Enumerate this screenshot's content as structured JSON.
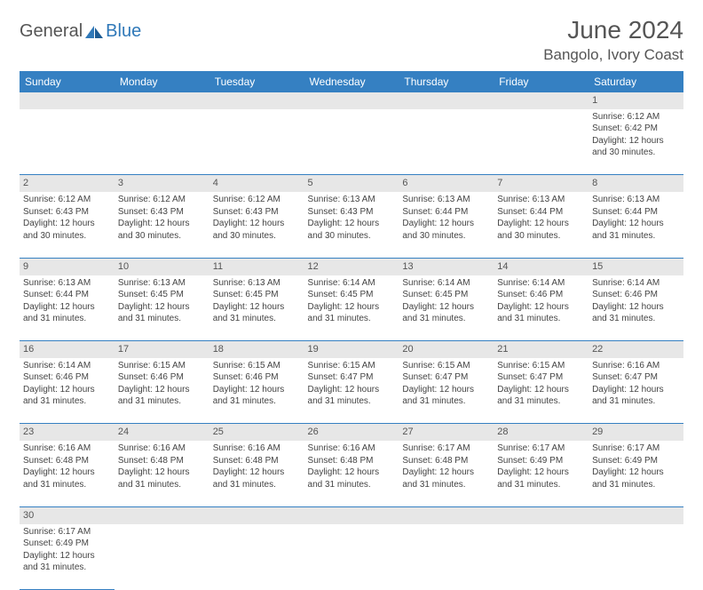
{
  "logo": {
    "part1": "General",
    "part2": "Blue"
  },
  "title": "June 2024",
  "location": "Bangolo, Ivory Coast",
  "colors": {
    "header_bg": "#3580c2",
    "header_text": "#ffffff",
    "daynum_bg": "#e7e7e7",
    "border": "#3580c2",
    "logo_accent": "#2f78b8",
    "text": "#444444"
  },
  "weekdays": [
    "Sunday",
    "Monday",
    "Tuesday",
    "Wednesday",
    "Thursday",
    "Friday",
    "Saturday"
  ],
  "weeks": [
    [
      null,
      null,
      null,
      null,
      null,
      null,
      {
        "n": "1",
        "sr": "6:12 AM",
        "ss": "6:42 PM",
        "dl": "12 hours and 30 minutes."
      }
    ],
    [
      {
        "n": "2",
        "sr": "6:12 AM",
        "ss": "6:43 PM",
        "dl": "12 hours and 30 minutes."
      },
      {
        "n": "3",
        "sr": "6:12 AM",
        "ss": "6:43 PM",
        "dl": "12 hours and 30 minutes."
      },
      {
        "n": "4",
        "sr": "6:12 AM",
        "ss": "6:43 PM",
        "dl": "12 hours and 30 minutes."
      },
      {
        "n": "5",
        "sr": "6:13 AM",
        "ss": "6:43 PM",
        "dl": "12 hours and 30 minutes."
      },
      {
        "n": "6",
        "sr": "6:13 AM",
        "ss": "6:44 PM",
        "dl": "12 hours and 30 minutes."
      },
      {
        "n": "7",
        "sr": "6:13 AM",
        "ss": "6:44 PM",
        "dl": "12 hours and 30 minutes."
      },
      {
        "n": "8",
        "sr": "6:13 AM",
        "ss": "6:44 PM",
        "dl": "12 hours and 31 minutes."
      }
    ],
    [
      {
        "n": "9",
        "sr": "6:13 AM",
        "ss": "6:44 PM",
        "dl": "12 hours and 31 minutes."
      },
      {
        "n": "10",
        "sr": "6:13 AM",
        "ss": "6:45 PM",
        "dl": "12 hours and 31 minutes."
      },
      {
        "n": "11",
        "sr": "6:13 AM",
        "ss": "6:45 PM",
        "dl": "12 hours and 31 minutes."
      },
      {
        "n": "12",
        "sr": "6:14 AM",
        "ss": "6:45 PM",
        "dl": "12 hours and 31 minutes."
      },
      {
        "n": "13",
        "sr": "6:14 AM",
        "ss": "6:45 PM",
        "dl": "12 hours and 31 minutes."
      },
      {
        "n": "14",
        "sr": "6:14 AM",
        "ss": "6:46 PM",
        "dl": "12 hours and 31 minutes."
      },
      {
        "n": "15",
        "sr": "6:14 AM",
        "ss": "6:46 PM",
        "dl": "12 hours and 31 minutes."
      }
    ],
    [
      {
        "n": "16",
        "sr": "6:14 AM",
        "ss": "6:46 PM",
        "dl": "12 hours and 31 minutes."
      },
      {
        "n": "17",
        "sr": "6:15 AM",
        "ss": "6:46 PM",
        "dl": "12 hours and 31 minutes."
      },
      {
        "n": "18",
        "sr": "6:15 AM",
        "ss": "6:46 PM",
        "dl": "12 hours and 31 minutes."
      },
      {
        "n": "19",
        "sr": "6:15 AM",
        "ss": "6:47 PM",
        "dl": "12 hours and 31 minutes."
      },
      {
        "n": "20",
        "sr": "6:15 AM",
        "ss": "6:47 PM",
        "dl": "12 hours and 31 minutes."
      },
      {
        "n": "21",
        "sr": "6:15 AM",
        "ss": "6:47 PM",
        "dl": "12 hours and 31 minutes."
      },
      {
        "n": "22",
        "sr": "6:16 AM",
        "ss": "6:47 PM",
        "dl": "12 hours and 31 minutes."
      }
    ],
    [
      {
        "n": "23",
        "sr": "6:16 AM",
        "ss": "6:48 PM",
        "dl": "12 hours and 31 minutes."
      },
      {
        "n": "24",
        "sr": "6:16 AM",
        "ss": "6:48 PM",
        "dl": "12 hours and 31 minutes."
      },
      {
        "n": "25",
        "sr": "6:16 AM",
        "ss": "6:48 PM",
        "dl": "12 hours and 31 minutes."
      },
      {
        "n": "26",
        "sr": "6:16 AM",
        "ss": "6:48 PM",
        "dl": "12 hours and 31 minutes."
      },
      {
        "n": "27",
        "sr": "6:17 AM",
        "ss": "6:48 PM",
        "dl": "12 hours and 31 minutes."
      },
      {
        "n": "28",
        "sr": "6:17 AM",
        "ss": "6:49 PM",
        "dl": "12 hours and 31 minutes."
      },
      {
        "n": "29",
        "sr": "6:17 AM",
        "ss": "6:49 PM",
        "dl": "12 hours and 31 minutes."
      }
    ],
    [
      {
        "n": "30",
        "sr": "6:17 AM",
        "ss": "6:49 PM",
        "dl": "12 hours and 31 minutes."
      },
      null,
      null,
      null,
      null,
      null,
      null
    ]
  ],
  "labels": {
    "sunrise": "Sunrise:",
    "sunset": "Sunset:",
    "daylight": "Daylight:"
  }
}
